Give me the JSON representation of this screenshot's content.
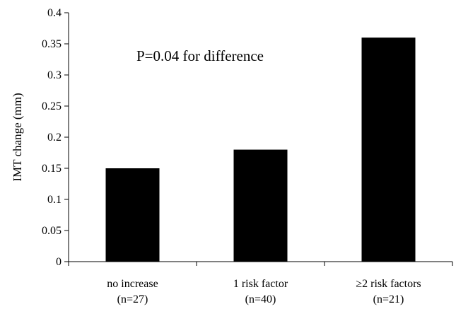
{
  "chart_data": {
    "type": "bar",
    "title": "",
    "xlabel": "",
    "ylabel": "IMT change (mm)",
    "ylim": [
      0,
      0.4
    ],
    "yticks": [
      0,
      0.05,
      0.1,
      0.15,
      0.2,
      0.25,
      0.3,
      0.35,
      0.4
    ],
    "ytick_labels": [
      "0",
      "0.05",
      "0.1",
      "0.15",
      "0.2",
      "0.25",
      "0.3",
      "0.35",
      "0.4"
    ],
    "categories": [
      {
        "line1": "no increase",
        "line2": "(n=27)"
      },
      {
        "line1": "1 risk factor",
        "line2": "(n=40)"
      },
      {
        "line1": "≥2 risk factors",
        "line2": "(n=21)"
      }
    ],
    "values": [
      0.15,
      0.18,
      0.36
    ],
    "bar_color": "#000000",
    "grid": false,
    "annotation": "P=0.04 for difference"
  }
}
